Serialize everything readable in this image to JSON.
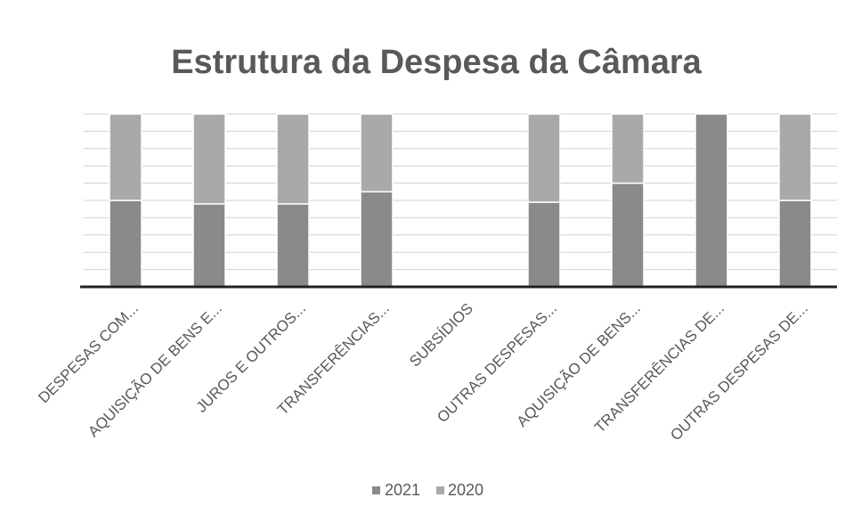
{
  "chart_data": {
    "type": "stacked_bar",
    "title": "Estrutura da Despesa da Câmara",
    "categories": [
      "DESPESAS COM...",
      "AQUISIÇÃO DE BENS E...",
      "JUROS E OUTROS...",
      "TRANSFERÊNCIAS...",
      "SUBSÍDIOS",
      "OUTRAS DESPESAS...",
      "AQUISIÇÃO DE BENS...",
      "TRANSFERÊNCIAS DE...",
      "OUTRAS DESPESAS DE..."
    ],
    "series": [
      {
        "name": "2021",
        "color": "#8a8a8a",
        "values": [
          50,
          48,
          48,
          55,
          0,
          49,
          60,
          100,
          50
        ]
      },
      {
        "name": "2020",
        "color": "#a9a9a9",
        "values": [
          50,
          52,
          52,
          45,
          0,
          51,
          40,
          0,
          50
        ]
      }
    ],
    "ylim": [
      0,
      100
    ],
    "yticks": [
      0,
      10,
      20,
      30,
      40,
      50,
      60,
      70,
      80,
      90,
      100
    ],
    "grid": true,
    "legend": "bottom"
  }
}
